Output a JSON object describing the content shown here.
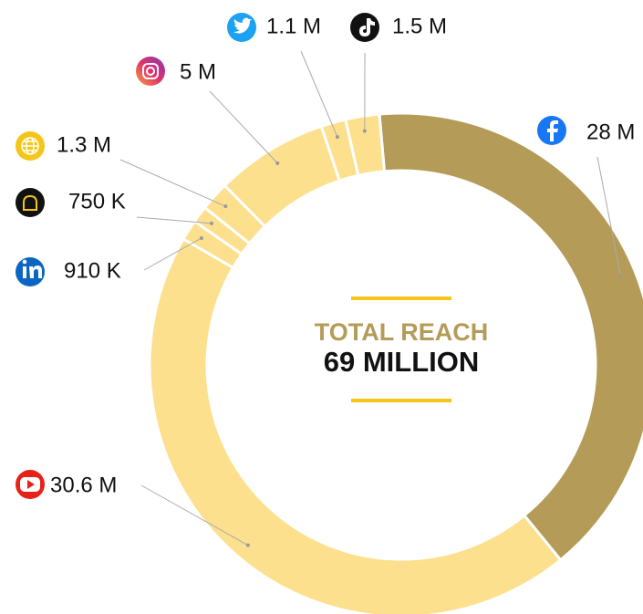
{
  "chart_data": {
    "type": "donut",
    "values": [
      28,
      30.6,
      0.91,
      0.75,
      1.3,
      5,
      1.1,
      1.5
    ],
    "value_labels": [
      "28 M",
      "30.6 M",
      "910 K",
      "750 K",
      "1.3 M",
      "5 M",
      "1.1 M",
      "1.5 M"
    ],
    "colors": [
      "#b59b58",
      "#fde08e",
      "#fde08e",
      "#fde08e",
      "#fde08e",
      "#fde08e",
      "#fde08e",
      "#fde08e"
    ],
    "center_title": "TOTAL REACH",
    "center_value": "69 MILLION"
  }
}
